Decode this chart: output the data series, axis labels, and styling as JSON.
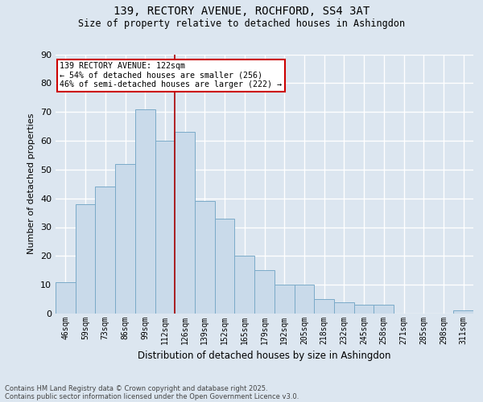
{
  "title_line1": "139, RECTORY AVENUE, ROCHFORD, SS4 3AT",
  "title_line2": "Size of property relative to detached houses in Ashingdon",
  "xlabel": "Distribution of detached houses by size in Ashingdon",
  "ylabel": "Number of detached properties",
  "categories": [
    "46sqm",
    "59sqm",
    "73sqm",
    "86sqm",
    "99sqm",
    "112sqm",
    "126sqm",
    "139sqm",
    "152sqm",
    "165sqm",
    "179sqm",
    "192sqm",
    "205sqm",
    "218sqm",
    "232sqm",
    "245sqm",
    "258sqm",
    "271sqm",
    "285sqm",
    "298sqm",
    "311sqm"
  ],
  "values": [
    11,
    38,
    44,
    52,
    71,
    60,
    63,
    39,
    33,
    20,
    15,
    10,
    10,
    5,
    4,
    3,
    3,
    0,
    0,
    0,
    1
  ],
  "bar_color": "#c9daea",
  "bar_edge_color": "#7aaac8",
  "marker_label": "139 RECTORY AVENUE: 122sqm",
  "marker_line1": "← 54% of detached houses are smaller (256)",
  "marker_line2": "46% of semi-detached houses are larger (222) →",
  "annotation_box_color": "#cc0000",
  "vline_pos": 5.5,
  "ylim": [
    0,
    90
  ],
  "yticks": [
    0,
    10,
    20,
    30,
    40,
    50,
    60,
    70,
    80,
    90
  ],
  "background_color": "#dce6f0",
  "plot_background": "#dce6f0",
  "grid_color": "#ffffff",
  "footer_line1": "Contains HM Land Registry data © Crown copyright and database right 2025.",
  "footer_line2": "Contains public sector information licensed under the Open Government Licence v3.0."
}
